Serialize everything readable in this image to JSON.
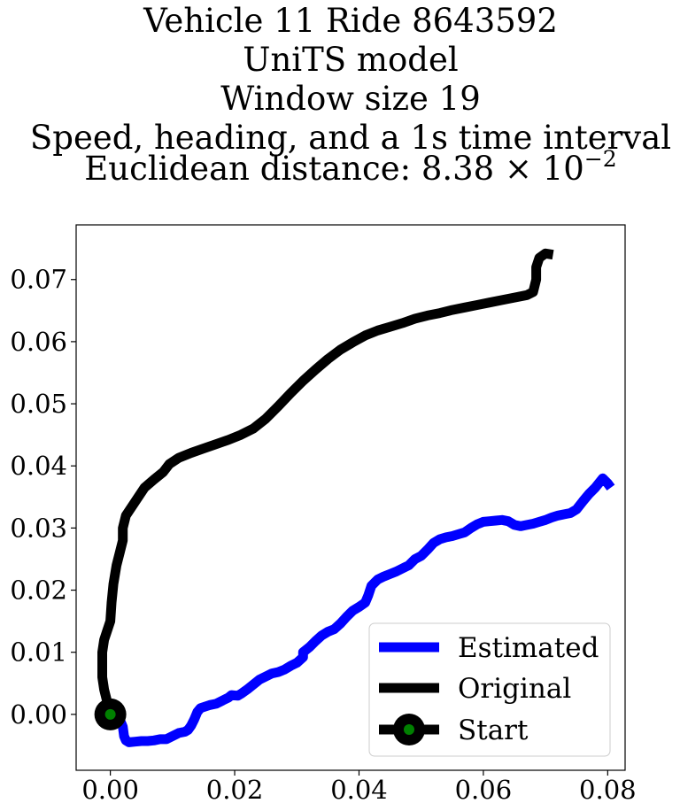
{
  "chart_data": {
    "type": "line",
    "title_lines": [
      "Vehicle 11 Ride 8643592",
      "UniTS model",
      "Window size 19",
      "Speed, heading, and a 1s time interval"
    ],
    "title_metric_prefix": "Euclidean distance: ",
    "title_metric_mantissa": "8.38",
    "title_metric_base": "10",
    "title_metric_exponent": "−2",
    "xlabel": "",
    "ylabel": "",
    "xlim": [
      -0.0055,
      0.0828
    ],
    "ylim": [
      -0.009,
      0.0788
    ],
    "x_ticks": [
      0.0,
      0.02,
      0.04,
      0.06,
      0.08
    ],
    "x_tick_labels": [
      "0.00",
      "0.02",
      "0.04",
      "0.06",
      "0.08"
    ],
    "y_ticks": [
      0.0,
      0.01,
      0.02,
      0.03,
      0.04,
      0.05,
      0.06,
      0.07
    ],
    "y_tick_labels": [
      "0.00",
      "0.01",
      "0.02",
      "0.03",
      "0.04",
      "0.05",
      "0.06",
      "0.07"
    ],
    "grid": false,
    "legend_position": "lower-right",
    "series": [
      {
        "name": "Estimated",
        "color": "#0000ff",
        "points": [
          [
            0.0,
            0.0
          ],
          [
            0.0015,
            -0.0008
          ],
          [
            0.002,
            -0.002
          ],
          [
            0.0022,
            -0.0035
          ],
          [
            0.0025,
            -0.0042
          ],
          [
            0.003,
            -0.0045
          ],
          [
            0.004,
            -0.0044
          ],
          [
            0.005,
            -0.0043
          ],
          [
            0.006,
            -0.0043
          ],
          [
            0.007,
            -0.0042
          ],
          [
            0.008,
            -0.004
          ],
          [
            0.009,
            -0.004
          ],
          [
            0.01,
            -0.0035
          ],
          [
            0.011,
            -0.003
          ],
          [
            0.012,
            -0.0028
          ],
          [
            0.0125,
            -0.0025
          ],
          [
            0.013,
            -0.0018
          ],
          [
            0.0135,
            -0.0008
          ],
          [
            0.014,
            0.0004
          ],
          [
            0.0145,
            0.001
          ],
          [
            0.016,
            0.0015
          ],
          [
            0.017,
            0.0017
          ],
          [
            0.018,
            0.0022
          ],
          [
            0.019,
            0.0027
          ],
          [
            0.0195,
            0.0031
          ],
          [
            0.0205,
            0.003
          ],
          [
            0.021,
            0.0033
          ],
          [
            0.022,
            0.004
          ],
          [
            0.023,
            0.0048
          ],
          [
            0.024,
            0.0056
          ],
          [
            0.025,
            0.0061
          ],
          [
            0.026,
            0.0066
          ],
          [
            0.027,
            0.0068
          ],
          [
            0.028,
            0.0072
          ],
          [
            0.029,
            0.0078
          ],
          [
            0.03,
            0.0083
          ],
          [
            0.031,
            0.0092
          ],
          [
            0.031,
            0.01
          ],
          [
            0.032,
            0.0108
          ],
          [
            0.033,
            0.0118
          ],
          [
            0.034,
            0.0127
          ],
          [
            0.035,
            0.0133
          ],
          [
            0.036,
            0.0137
          ],
          [
            0.037,
            0.0146
          ],
          [
            0.038,
            0.0157
          ],
          [
            0.039,
            0.0167
          ],
          [
            0.04,
            0.0173
          ],
          [
            0.041,
            0.018
          ],
          [
            0.0415,
            0.0192
          ],
          [
            0.042,
            0.0207
          ],
          [
            0.043,
            0.0217
          ],
          [
            0.044,
            0.0222
          ],
          [
            0.045,
            0.0226
          ],
          [
            0.046,
            0.023
          ],
          [
            0.047,
            0.0235
          ],
          [
            0.048,
            0.024
          ],
          [
            0.049,
            0.025
          ],
          [
            0.05,
            0.0255
          ],
          [
            0.051,
            0.0265
          ],
          [
            0.052,
            0.0276
          ],
          [
            0.053,
            0.0282
          ],
          [
            0.054,
            0.0285
          ],
          [
            0.055,
            0.0287
          ],
          [
            0.056,
            0.029
          ],
          [
            0.057,
            0.0293
          ],
          [
            0.058,
            0.03
          ],
          [
            0.059,
            0.0306
          ],
          [
            0.06,
            0.031
          ],
          [
            0.061,
            0.0311
          ],
          [
            0.062,
            0.0312
          ],
          [
            0.063,
            0.0313
          ],
          [
            0.064,
            0.0311
          ],
          [
            0.065,
            0.0305
          ],
          [
            0.066,
            0.0303
          ],
          [
            0.067,
            0.0305
          ],
          [
            0.068,
            0.0307
          ],
          [
            0.069,
            0.031
          ],
          [
            0.07,
            0.0313
          ],
          [
            0.071,
            0.0317
          ],
          [
            0.072,
            0.032
          ],
          [
            0.073,
            0.0322
          ],
          [
            0.074,
            0.0324
          ],
          [
            0.075,
            0.033
          ],
          [
            0.076,
            0.0343
          ],
          [
            0.077,
            0.0355
          ],
          [
            0.078,
            0.0365
          ],
          [
            0.0792,
            0.038
          ],
          [
            0.08,
            0.0372
          ],
          [
            0.0805,
            0.0365
          ]
        ]
      },
      {
        "name": "Original",
        "color": "#000000",
        "points": [
          [
            0.0,
            0.0
          ],
          [
            -0.0005,
            0.002
          ],
          [
            -0.001,
            0.004
          ],
          [
            -0.0013,
            0.006
          ],
          [
            -0.0013,
            0.008
          ],
          [
            -0.0013,
            0.01
          ],
          [
            -0.001,
            0.012
          ],
          [
            -0.0005,
            0.0135
          ],
          [
            0.0,
            0.015
          ],
          [
            0.0002,
            0.018
          ],
          [
            0.0005,
            0.021
          ],
          [
            0.001,
            0.024
          ],
          [
            0.0015,
            0.026
          ],
          [
            0.002,
            0.028
          ],
          [
            0.002,
            0.03
          ],
          [
            0.0025,
            0.032
          ],
          [
            0.0035,
            0.0335
          ],
          [
            0.0045,
            0.035
          ],
          [
            0.0055,
            0.0365
          ],
          [
            0.007,
            0.0378
          ],
          [
            0.0085,
            0.039
          ],
          [
            0.0095,
            0.0403
          ],
          [
            0.011,
            0.0413
          ],
          [
            0.013,
            0.0421
          ],
          [
            0.015,
            0.0428
          ],
          [
            0.017,
            0.0435
          ],
          [
            0.019,
            0.0442
          ],
          [
            0.021,
            0.045
          ],
          [
            0.023,
            0.046
          ],
          [
            0.025,
            0.0476
          ],
          [
            0.027,
            0.0496
          ],
          [
            0.029,
            0.0517
          ],
          [
            0.031,
            0.0537
          ],
          [
            0.033,
            0.0555
          ],
          [
            0.035,
            0.0572
          ],
          [
            0.037,
            0.0587
          ],
          [
            0.039,
            0.0599
          ],
          [
            0.041,
            0.061
          ],
          [
            0.043,
            0.0618
          ],
          [
            0.045,
            0.0624
          ],
          [
            0.047,
            0.063
          ],
          [
            0.049,
            0.0637
          ],
          [
            0.051,
            0.0642
          ],
          [
            0.053,
            0.0646
          ],
          [
            0.055,
            0.0651
          ],
          [
            0.057,
            0.0655
          ],
          [
            0.059,
            0.0659
          ],
          [
            0.061,
            0.0663
          ],
          [
            0.063,
            0.0667
          ],
          [
            0.065,
            0.0671
          ],
          [
            0.067,
            0.0675
          ],
          [
            0.068,
            0.068
          ],
          [
            0.0685,
            0.07
          ],
          [
            0.0685,
            0.072
          ],
          [
            0.069,
            0.0735
          ],
          [
            0.07,
            0.0742
          ],
          [
            0.0712,
            0.074
          ]
        ]
      }
    ],
    "start_marker": {
      "name": "Start",
      "point": [
        0.0,
        0.0
      ],
      "outer_color": "#000000",
      "inner_color": "#008000"
    }
  }
}
